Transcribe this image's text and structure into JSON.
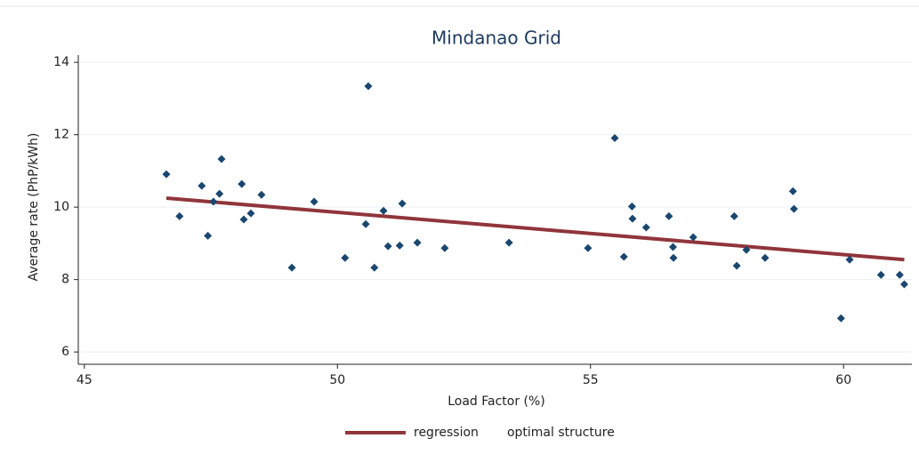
{
  "chart_data": {
    "type": "scatter",
    "title": "Mindanao Grid",
    "x_label": "Load Factor (%)",
    "y_label": "Average rate (PhP/kWh)",
    "xlim": [
      44.88,
      61.35
    ],
    "ylim": [
      5.66,
      14.2
    ],
    "xticks": [
      45,
      50,
      55,
      60
    ],
    "yticks": [
      6,
      8,
      10,
      12,
      14
    ],
    "grid": true,
    "series": [
      {
        "name": "regression",
        "type": "line",
        "color": "#90353b",
        "x": [
          46.62,
          61.2
        ],
        "values": [
          10.25,
          8.55
        ]
      },
      {
        "name": "optimal structure",
        "type": "scatter",
        "color": "#1a476f",
        "x": [
          46.62,
          46.88,
          47.32,
          47.44,
          47.55,
          47.67,
          47.71,
          48.11,
          48.15,
          48.29,
          48.5,
          49.1,
          49.54,
          50.15,
          50.56,
          50.61,
          50.73,
          50.91,
          51.0,
          51.23,
          51.28,
          51.58,
          52.12,
          53.39,
          54.95,
          55.48,
          55.66,
          55.82,
          55.83,
          56.1,
          56.55,
          56.63,
          56.64,
          57.03,
          57.84,
          57.89,
          58.08,
          58.45,
          59.0,
          59.02,
          59.95,
          60.12,
          60.74,
          61.11,
          61.2
        ],
        "values": [
          10.91,
          9.75,
          10.59,
          9.21,
          10.15,
          10.37,
          11.33,
          10.64,
          9.66,
          9.83,
          10.34,
          8.33,
          10.15,
          8.6,
          9.53,
          13.34,
          8.33,
          9.9,
          8.92,
          8.94,
          10.1,
          9.02,
          8.87,
          9.02,
          8.87,
          11.91,
          8.63,
          10.02,
          9.68,
          9.44,
          9.75,
          8.9,
          8.6,
          9.17,
          9.75,
          8.38,
          8.82,
          8.6,
          10.44,
          9.95,
          6.93,
          8.55,
          8.13,
          8.13,
          7.87
        ]
      }
    ]
  }
}
